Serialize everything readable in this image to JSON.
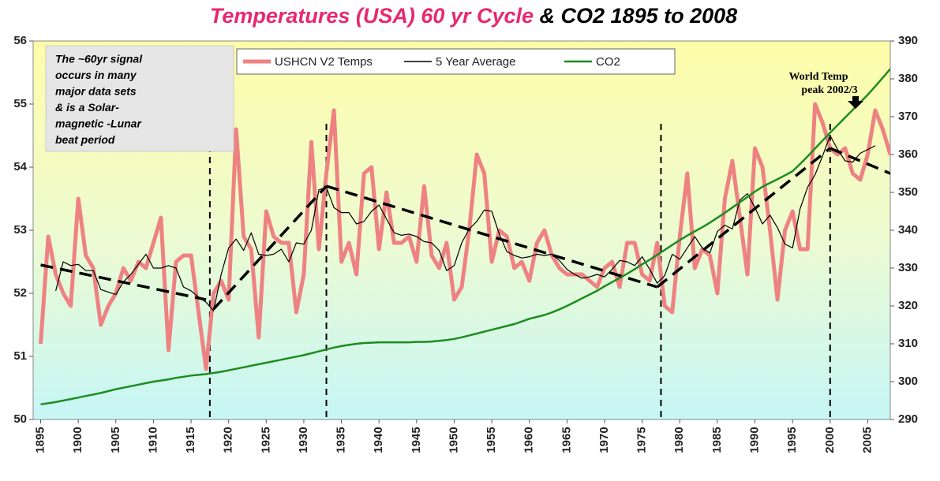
{
  "chart_data": {
    "type": "line",
    "title": [
      {
        "text": "Temperatures (USA) 60 yr Cycle",
        "color": "#e8286e"
      },
      {
        "text": " & CO2 1895 to 2008",
        "color": "#000000"
      }
    ],
    "x": [
      1895,
      1896,
      1897,
      1898,
      1899,
      1900,
      1901,
      1902,
      1903,
      1904,
      1905,
      1906,
      1907,
      1908,
      1909,
      1910,
      1911,
      1912,
      1913,
      1914,
      1915,
      1916,
      1917,
      1918,
      1919,
      1920,
      1921,
      1922,
      1923,
      1924,
      1925,
      1926,
      1927,
      1928,
      1929,
      1930,
      1931,
      1932,
      1933,
      1934,
      1935,
      1936,
      1937,
      1938,
      1939,
      1940,
      1941,
      1942,
      1943,
      1944,
      1945,
      1946,
      1947,
      1948,
      1949,
      1950,
      1951,
      1952,
      1953,
      1954,
      1955,
      1956,
      1957,
      1958,
      1959,
      1960,
      1961,
      1962,
      1963,
      1964,
      1965,
      1966,
      1967,
      1968,
      1969,
      1970,
      1971,
      1972,
      1973,
      1974,
      1975,
      1976,
      1977,
      1978,
      1979,
      1980,
      1981,
      1982,
      1983,
      1984,
      1985,
      1986,
      1987,
      1988,
      1989,
      1990,
      1991,
      1992,
      1993,
      1994,
      1995,
      1996,
      1997,
      1998,
      1999,
      2000,
      2001,
      2002,
      2003,
      2004,
      2005,
      2006,
      2007,
      2008
    ],
    "series": [
      {
        "name": "USHCN V2 Temps",
        "color": "#ee8282",
        "values": [
          51.2,
          52.9,
          52.3,
          52.0,
          51.8,
          53.5,
          52.6,
          52.4,
          51.5,
          51.8,
          52.0,
          52.4,
          52.2,
          52.5,
          52.4,
          52.8,
          53.2,
          51.1,
          52.5,
          52.6,
          52.6,
          51.7,
          50.8,
          52.0,
          52.2,
          51.9,
          54.6,
          52.9,
          52.7,
          51.3,
          53.3,
          52.9,
          52.8,
          52.8,
          51.7,
          52.3,
          54.4,
          52.7,
          53.9,
          54.9,
          52.5,
          52.8,
          52.3,
          53.9,
          54.0,
          52.7,
          53.6,
          52.8,
          52.8,
          52.9,
          52.5,
          53.7,
          52.6,
          52.4,
          52.8,
          51.9,
          52.1,
          53.0,
          54.2,
          53.9,
          52.5,
          53.0,
          52.9,
          52.4,
          52.5,
          52.2,
          52.8,
          53.0,
          52.6,
          52.4,
          52.3,
          52.3,
          52.3,
          52.2,
          52.1,
          52.4,
          52.5,
          52.1,
          52.8,
          52.8,
          52.3,
          52.2,
          52.8,
          51.8,
          51.7,
          52.9,
          53.9,
          52.4,
          52.7,
          52.6,
          52.0,
          53.5,
          54.1,
          53.2,
          52.3,
          54.3,
          54.0,
          53.0,
          51.9,
          53.0,
          53.3,
          52.7,
          52.7,
          55.0,
          54.7,
          54.3,
          54.2,
          54.3,
          53.9,
          53.8,
          54.2,
          54.9,
          54.6,
          54.2
        ]
      },
      {
        "name": "5 Year Average",
        "color": "#000000",
        "values": [
          null,
          null,
          52.04,
          52.5,
          52.44,
          52.46,
          52.36,
          52.36,
          52.06,
          52.02,
          51.98,
          52.18,
          52.3,
          52.46,
          52.62,
          52.4,
          52.4,
          52.44,
          52.4,
          52.1,
          52.04,
          51.94,
          51.86,
          51.72,
          52.3,
          52.72,
          52.86,
          52.68,
          52.96,
          52.62,
          52.6,
          52.62,
          52.7,
          52.5,
          52.8,
          52.78,
          53.0,
          53.64,
          53.68,
          53.36,
          53.28,
          53.28,
          53.1,
          53.14,
          53.3,
          53.4,
          53.18,
          52.96,
          52.92,
          52.94,
          52.9,
          52.82,
          52.8,
          52.68,
          52.36,
          52.44,
          52.8,
          53.02,
          53.14,
          53.32,
          53.3,
          52.94,
          52.66,
          52.6,
          52.56,
          52.58,
          52.62,
          52.6,
          52.62,
          52.52,
          52.38,
          52.3,
          52.24,
          52.26,
          52.3,
          52.26,
          52.38,
          52.52,
          52.5,
          52.44,
          52.58,
          52.38,
          52.16,
          52.28,
          52.62,
          52.54,
          52.72,
          52.9,
          52.72,
          52.64,
          52.98,
          53.08,
          53.02,
          53.48,
          53.58,
          53.36,
          53.1,
          53.24,
          53.04,
          52.78,
          52.72,
          53.34,
          53.68,
          53.88,
          54.18,
          54.5,
          54.28,
          54.1,
          54.08,
          54.22,
          54.28,
          54.34,
          null,
          null
        ]
      },
      {
        "name": "CO2",
        "color": "#1e8c1e",
        "axis": "y2",
        "values": [
          294.0,
          294.3,
          294.6,
          295.0,
          295.4,
          295.8,
          296.2,
          296.6,
          297.0,
          297.5,
          298.0,
          298.4,
          298.8,
          299.2,
          299.6,
          300.0,
          300.3,
          300.6,
          301.0,
          301.3,
          301.6,
          301.8,
          302.0,
          302.3,
          302.6,
          303.0,
          303.4,
          303.8,
          304.2,
          304.6,
          305.0,
          305.4,
          305.8,
          306.2,
          306.6,
          307.0,
          307.5,
          308.0,
          308.5,
          309.0,
          309.4,
          309.7,
          310.0,
          310.2,
          310.3,
          310.4,
          310.4,
          310.4,
          310.4,
          310.4,
          310.5,
          310.5,
          310.6,
          310.8,
          311.0,
          311.3,
          311.7,
          312.2,
          312.7,
          313.2,
          313.7,
          314.2,
          314.7,
          315.2,
          315.9,
          316.6,
          317.1,
          317.6,
          318.3,
          319.1,
          320.0,
          321.0,
          322.0,
          323.0,
          324.0,
          325.2,
          326.3,
          327.4,
          328.5,
          329.7,
          331.0,
          332.2,
          333.5,
          334.8,
          336.1,
          337.4,
          338.6,
          339.7,
          340.8,
          342.0,
          343.3,
          344.6,
          346.0,
          347.4,
          348.8,
          350.2,
          351.5,
          352.5,
          353.5,
          354.5,
          355.6,
          357.5,
          359.5,
          361.6,
          363.7,
          365.8,
          367.8,
          369.8,
          371.8,
          373.8,
          375.8,
          378.0,
          380.3,
          382.6
        ]
      }
    ],
    "trend_lines": [
      {
        "x": [
          1895,
          1917
        ],
        "y": [
          52.45,
          51.9
        ]
      },
      {
        "x": [
          1918,
          1933
        ],
        "y": [
          51.75,
          53.7
        ]
      },
      {
        "x": [
          1933,
          1977
        ],
        "y": [
          53.7,
          52.1
        ]
      },
      {
        "x": [
          1977,
          2000
        ],
        "y": [
          52.1,
          54.3
        ]
      },
      {
        "x": [
          2000,
          2008
        ],
        "y": [
          54.3,
          53.9
        ]
      }
    ],
    "vertical_lines": [
      1917.5,
      1933,
      1977.5,
      2000
    ],
    "xlim": [
      1894,
      2008
    ],
    "xticks": [
      1895,
      1900,
      1905,
      1910,
      1915,
      1920,
      1925,
      1930,
      1935,
      1940,
      1945,
      1950,
      1955,
      1960,
      1965,
      1970,
      1975,
      1980,
      1985,
      1990,
      1995,
      2000,
      2005
    ],
    "ylim": [
      50,
      56
    ],
    "yticks": [
      50,
      51,
      52,
      53,
      54,
      55,
      56
    ],
    "y2lim": [
      290,
      390
    ],
    "y2ticks": [
      290,
      300,
      310,
      320,
      330,
      340,
      350,
      360,
      370,
      380,
      390
    ],
    "legend": "top",
    "grid": false,
    "annotations": [
      {
        "lines": [
          "The ~60yr signal",
          "occurs in many",
          "major data sets",
          "& is a Solar-",
          "magnetic -Lunar",
          "beat period"
        ]
      },
      {
        "lines": [
          "World Temp",
          "peak 2002/3"
        ]
      }
    ]
  }
}
